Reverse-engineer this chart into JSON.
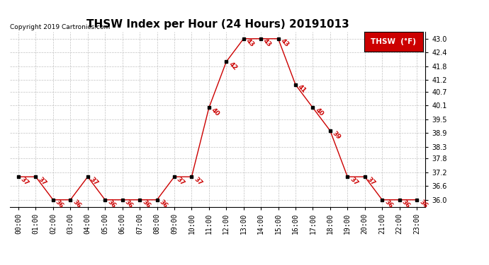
{
  "title": "THSW Index per Hour (24 Hours) 20191013",
  "copyright": "Copyright 2019 Cartronics.com",
  "legend_label": "THSW  (°F)",
  "hours": [
    0,
    1,
    2,
    3,
    4,
    5,
    6,
    7,
    8,
    9,
    10,
    11,
    12,
    13,
    14,
    15,
    16,
    17,
    18,
    19,
    20,
    21,
    22,
    23
  ],
  "values": [
    37,
    37,
    36,
    36,
    37,
    36,
    36,
    36,
    36,
    37,
    37,
    40,
    42,
    43,
    43,
    43,
    41,
    40,
    39,
    37,
    37,
    36,
    36,
    36
  ],
  "x_labels": [
    "00:00",
    "01:00",
    "02:00",
    "03:00",
    "04:00",
    "05:00",
    "06:00",
    "07:00",
    "08:00",
    "09:00",
    "10:00",
    "11:00",
    "12:00",
    "13:00",
    "14:00",
    "15:00",
    "16:00",
    "17:00",
    "18:00",
    "19:00",
    "20:00",
    "21:00",
    "22:00",
    "23:00"
  ],
  "ylim": [
    35.7,
    43.3
  ],
  "ytick_vals": [
    36.0,
    36.6,
    37.2,
    37.8,
    38.3,
    38.9,
    39.5,
    40.1,
    40.7,
    41.2,
    41.8,
    42.4,
    43.0
  ],
  "ytick_labels": [
    "36.0",
    "36.6",
    "37.2",
    "37.8",
    "38.3",
    "38.9",
    "39.5",
    "40.1",
    "40.7",
    "41.2",
    "41.8",
    "42.4",
    "43.0"
  ],
  "line_color": "#cc0000",
  "marker_color": "#000000",
  "bg_color": "#ffffff",
  "grid_color": "#bbbbbb",
  "title_fontsize": 11,
  "copyright_fontsize": 6.5,
  "label_fontsize": 6.5,
  "tick_fontsize": 7,
  "legend_bg": "#cc0000",
  "legend_text_color": "#ffffff",
  "legend_fontsize": 7.5
}
